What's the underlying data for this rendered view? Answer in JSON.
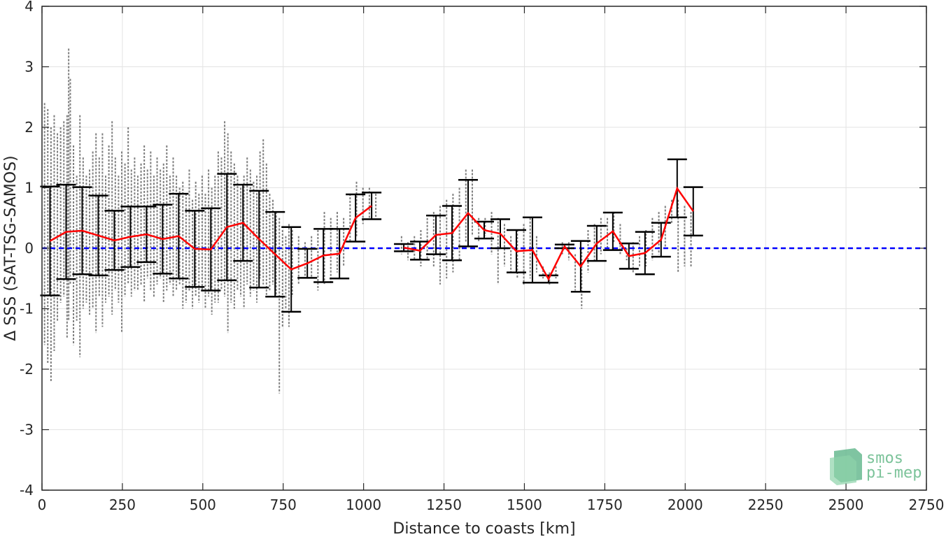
{
  "chart_data": {
    "type": "scatter",
    "xlabel": "Distance to coasts [km]",
    "ylabel": "Δ SSS (SAT-TSG-SAMOS)",
    "xlim": [
      0,
      2750
    ],
    "ylim": [
      -4,
      4
    ],
    "xticks": [
      0,
      250,
      500,
      750,
      1000,
      1250,
      1500,
      1750,
      2000,
      2250,
      2500,
      2750
    ],
    "yticks": [
      -4,
      -3,
      -2,
      -1,
      0,
      1,
      2,
      3,
      4
    ],
    "grid": true,
    "colors": {
      "scatter": "#7f7f7f",
      "mean": "#ff0000",
      "errorbar": "#000000",
      "zero_line": "#0000ff"
    },
    "zero_line": {
      "y": 0,
      "style": "dashed"
    },
    "series": [
      {
        "kind": "mean_with_std",
        "x": [
          25,
          75,
          125,
          175,
          225,
          275,
          325,
          375,
          425,
          475,
          525,
          575,
          625,
          675,
          725,
          775,
          825,
          875,
          925,
          975,
          1025,
          1125,
          1175,
          1225,
          1275,
          1325,
          1375,
          1425,
          1475,
          1525,
          1575,
          1625,
          1675,
          1725,
          1775,
          1825,
          1875,
          1925,
          1975,
          2025
        ],
        "y": [
          0.12,
          0.27,
          0.29,
          0.21,
          0.13,
          0.19,
          0.23,
          0.15,
          0.2,
          -0.01,
          -0.02,
          0.35,
          0.42,
          0.15,
          -0.1,
          -0.35,
          -0.25,
          -0.12,
          -0.09,
          0.5,
          0.7,
          0.01,
          -0.04,
          0.22,
          0.25,
          0.58,
          0.3,
          0.24,
          -0.05,
          -0.03,
          -0.51,
          0.03,
          -0.3,
          0.08,
          0.28,
          -0.13,
          -0.08,
          0.14,
          0.99,
          0.61
        ],
        "std": [
          0.9,
          0.78,
          0.72,
          0.66,
          0.49,
          0.5,
          0.46,
          0.57,
          0.7,
          0.63,
          0.68,
          0.88,
          0.63,
          0.8,
          0.7,
          0.7,
          0.24,
          0.44,
          0.41,
          0.39,
          0.22,
          0.06,
          0.15,
          0.32,
          0.45,
          0.55,
          0.14,
          0.24,
          0.35,
          0.54,
          0.06,
          0.03,
          0.42,
          0.29,
          0.31,
          0.21,
          0.35,
          0.28,
          0.48,
          0.4
        ]
      },
      {
        "kind": "scatter_columns",
        "points": [
          [
            8,
            -1.6,
            2.4
          ],
          [
            18,
            -1.9,
            2.3
          ],
          [
            28,
            -2.2,
            2.0
          ],
          [
            38,
            -1.7,
            2.2
          ],
          [
            48,
            -1.2,
            1.9
          ],
          [
            58,
            -0.9,
            2.0
          ],
          [
            68,
            -0.8,
            2.1
          ],
          [
            78,
            -1.5,
            2.2
          ],
          [
            83,
            -1.2,
            3.3
          ],
          [
            88,
            -0.6,
            2.8
          ],
          [
            98,
            -1.6,
            1.7
          ],
          [
            108,
            -1.2,
            1.2
          ],
          [
            118,
            -1.8,
            2.2
          ],
          [
            128,
            -1.0,
            1.5
          ],
          [
            138,
            -0.9,
            1.2
          ],
          [
            148,
            -1.1,
            1.3
          ],
          [
            158,
            -1.0,
            1.6
          ],
          [
            168,
            -1.4,
            1.9
          ],
          [
            178,
            -0.8,
            1.5
          ],
          [
            188,
            -1.3,
            1.9
          ],
          [
            198,
            -0.9,
            1.2
          ],
          [
            208,
            -0.8,
            1.7
          ],
          [
            218,
            -1.1,
            2.1
          ],
          [
            228,
            -0.7,
            1.5
          ],
          [
            238,
            -0.9,
            1.2
          ],
          [
            248,
            -1.4,
            1.6
          ],
          [
            258,
            -0.8,
            1.4
          ],
          [
            268,
            -0.6,
            2.0
          ],
          [
            278,
            -0.8,
            1.3
          ],
          [
            288,
            -0.7,
            1.5
          ],
          [
            298,
            -0.7,
            1.2
          ],
          [
            308,
            -0.6,
            1.4
          ],
          [
            318,
            -0.9,
            1.7
          ],
          [
            328,
            -0.5,
            1.3
          ],
          [
            338,
            -0.7,
            1.6
          ],
          [
            348,
            -0.8,
            1.2
          ],
          [
            358,
            -0.6,
            1.5
          ],
          [
            368,
            -0.5,
            1.3
          ],
          [
            378,
            -0.9,
            1.4
          ],
          [
            388,
            -0.7,
            1.7
          ],
          [
            398,
            -0.6,
            1.2
          ],
          [
            408,
            -0.8,
            1.5
          ],
          [
            418,
            -0.7,
            1.2
          ],
          [
            428,
            -0.6,
            1.0
          ],
          [
            438,
            -1.0,
            1.1
          ],
          [
            448,
            -0.9,
            0.9
          ],
          [
            458,
            -0.7,
            1.3
          ],
          [
            468,
            -1.0,
            0.8
          ],
          [
            478,
            -0.8,
            1.1
          ],
          [
            488,
            -0.9,
            0.9
          ],
          [
            498,
            -0.7,
            1.2
          ],
          [
            508,
            -1.0,
            0.9
          ],
          [
            518,
            -0.8,
            1.3
          ],
          [
            528,
            -1.1,
            1.0
          ],
          [
            538,
            -0.9,
            1.2
          ],
          [
            548,
            -0.9,
            1.6
          ],
          [
            558,
            -0.7,
            1.5
          ],
          [
            568,
            -0.8,
            2.1
          ],
          [
            578,
            -1.4,
            1.9
          ],
          [
            588,
            -0.9,
            1.6
          ],
          [
            598,
            -1.0,
            1.4
          ],
          [
            608,
            -0.7,
            1.2
          ],
          [
            618,
            -0.8,
            1.0
          ],
          [
            628,
            -1.0,
            1.2
          ],
          [
            638,
            -0.6,
            1.5
          ],
          [
            648,
            -0.8,
            1.3
          ],
          [
            658,
            -0.7,
            1.1
          ],
          [
            668,
            -0.9,
            1.2
          ],
          [
            678,
            -0.5,
            1.6
          ],
          [
            688,
            -0.6,
            1.8
          ],
          [
            698,
            -0.8,
            1.4
          ],
          [
            708,
            -0.7,
            0.9
          ],
          [
            718,
            -0.6,
            0.8
          ],
          [
            728,
            -0.8,
            0.6
          ],
          [
            738,
            -2.4,
            0.5
          ],
          [
            748,
            -1.3,
            0.3
          ],
          [
            758,
            -1.0,
            0.2
          ],
          [
            768,
            -1.3,
            0.4
          ],
          [
            778,
            -0.8,
            0.3
          ],
          [
            798,
            -0.6,
            0.2
          ],
          [
            818,
            -0.5,
            0.1
          ],
          [
            838,
            -0.5,
            0.2
          ],
          [
            858,
            -0.7,
            0.3
          ],
          [
            878,
            -0.6,
            0.6
          ],
          [
            898,
            -0.6,
            0.5
          ],
          [
            918,
            -0.4,
            0.6
          ],
          [
            938,
            -0.3,
            0.5
          ],
          [
            958,
            0.1,
            0.9
          ],
          [
            978,
            0.2,
            1.1
          ],
          [
            998,
            0.4,
            1.0
          ],
          [
            1018,
            0.5,
            1.0
          ],
          [
            1038,
            0.5,
            0.9
          ],
          [
            1118,
            -0.1,
            0.2
          ],
          [
            1138,
            -0.2,
            0.1
          ],
          [
            1158,
            -0.2,
            0.2
          ],
          [
            1178,
            -0.3,
            0.3
          ],
          [
            1198,
            -0.2,
            0.5
          ],
          [
            1218,
            -0.3,
            0.6
          ],
          [
            1238,
            -0.6,
            0.7
          ],
          [
            1258,
            -0.5,
            0.8
          ],
          [
            1278,
            -0.4,
            0.9
          ],
          [
            1298,
            -0.2,
            1.0
          ],
          [
            1318,
            0.1,
            1.3
          ],
          [
            1338,
            0.2,
            1.3
          ],
          [
            1358,
            0.1,
            0.5
          ],
          [
            1378,
            0.2,
            0.5
          ],
          [
            1398,
            -0.1,
            0.6
          ],
          [
            1418,
            -0.6,
            0.5
          ],
          [
            1438,
            -0.3,
            0.4
          ],
          [
            1458,
            -0.4,
            0.2
          ],
          [
            1478,
            -0.5,
            0.3
          ],
          [
            1498,
            -0.6,
            0.4
          ],
          [
            1518,
            -0.5,
            0.5
          ],
          [
            1538,
            -0.4,
            0.2
          ],
          [
            1558,
            -0.5,
            -0.3
          ],
          [
            1578,
            -0.6,
            -0.4
          ],
          [
            1598,
            -0.5,
            -0.3
          ],
          [
            1618,
            -0.1,
            0.1
          ],
          [
            1638,
            -0.2,
            0.1
          ],
          [
            1658,
            -0.7,
            -0.1
          ],
          [
            1678,
            -1.0,
            0.0
          ],
          [
            1698,
            -0.4,
            0.3
          ],
          [
            1718,
            -0.2,
            0.4
          ],
          [
            1738,
            -0.1,
            0.5
          ],
          [
            1758,
            0.0,
            0.5
          ],
          [
            1778,
            0.1,
            0.6
          ],
          [
            1798,
            -0.1,
            0.4
          ],
          [
            1818,
            -0.2,
            0.0
          ],
          [
            1838,
            -0.4,
            0.1
          ],
          [
            1858,
            -0.3,
            0.2
          ],
          [
            1878,
            -0.3,
            0.3
          ],
          [
            1898,
            -0.2,
            0.5
          ],
          [
            1918,
            -0.1,
            0.6
          ],
          [
            1938,
            0.0,
            0.7
          ],
          [
            1958,
            0.4,
            0.8
          ],
          [
            1978,
            -0.4,
            0.8
          ],
          [
            1998,
            -0.3,
            0.7
          ],
          [
            2018,
            -0.3,
            0.6
          ]
        ]
      }
    ]
  },
  "logo": {
    "line1": "smos",
    "line2": "pi-mep"
  }
}
